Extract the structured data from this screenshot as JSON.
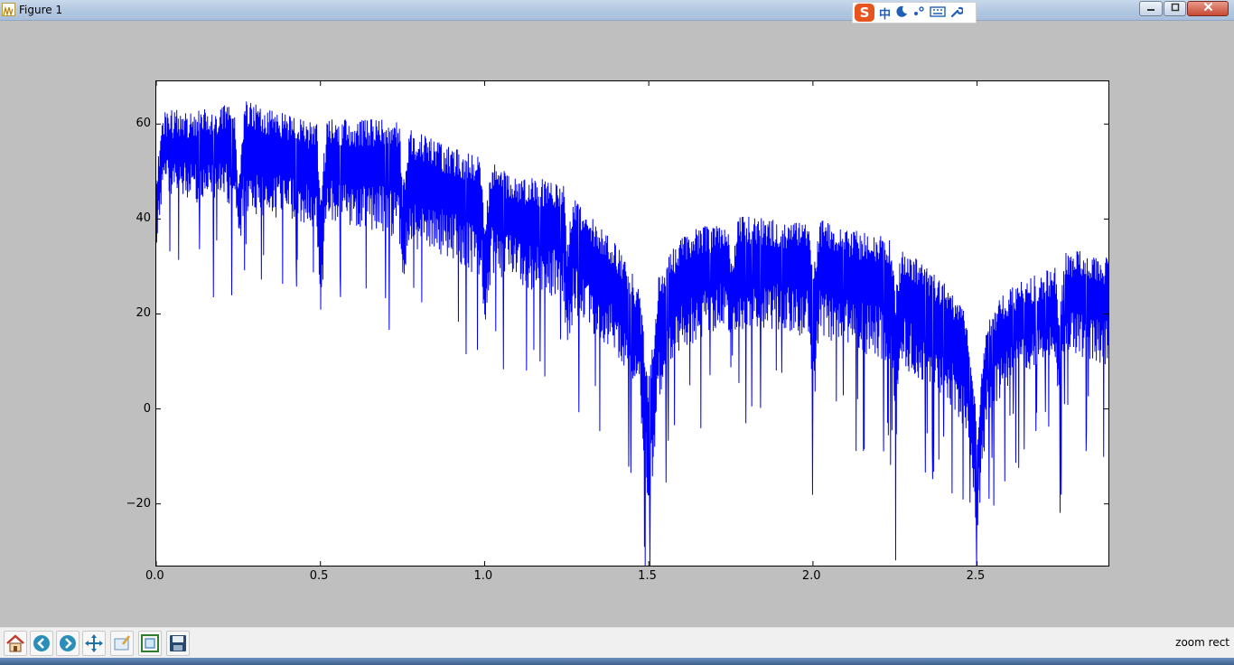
{
  "window": {
    "title": "Figure 1",
    "icon": "matplotlib-figure-icon",
    "controls": [
      "minimize-icon",
      "maximize-icon",
      "close-icon"
    ]
  },
  "ime": {
    "logo": "S",
    "mode": "中",
    "icons": [
      "sogou-logo-icon",
      "moon-icon",
      "punctuation-icon",
      "keyboard-icon",
      "wrench-icon"
    ]
  },
  "toolbar": {
    "buttons": [
      {
        "name": "home-button",
        "icon": "home-icon"
      },
      {
        "name": "back-button",
        "icon": "arrow-left-icon"
      },
      {
        "name": "forward-button",
        "icon": "arrow-right-icon"
      },
      {
        "name": "pan-button",
        "icon": "move-icon"
      },
      {
        "name": "zoom-button",
        "icon": "zoom-rect-icon"
      },
      {
        "name": "subplots-button",
        "icon": "subplots-icon"
      },
      {
        "name": "save-button",
        "icon": "save-icon"
      }
    ],
    "status": "zoom rect"
  },
  "colors": {
    "line": "#0000ff",
    "figure_bg": "#bfbfbf",
    "axes_bg": "#ffffff"
  },
  "chart_data": {
    "type": "line",
    "xlim": [
      0.0,
      2.9
    ],
    "ylim": [
      -33,
      69
    ],
    "xticks": [
      0.0,
      0.5,
      1.0,
      1.5,
      2.0,
      2.5
    ],
    "xtick_labels": [
      "0.0",
      "0.5",
      "1.0",
      "1.5",
      "2.0",
      "2.5"
    ],
    "yticks": [
      60,
      40,
      20,
      0,
      -20
    ],
    "ytick_labels": [
      "60",
      "40",
      "20",
      "0",
      "−20"
    ],
    "grid": false,
    "series": [
      {
        "color": "#0000ff",
        "envelope_x": [
          0.0,
          0.02,
          0.1,
          0.2,
          0.24,
          0.25,
          0.27,
          0.4,
          0.49,
          0.5,
          0.52,
          0.6,
          0.74,
          0.75,
          0.77,
          0.9,
          0.99,
          1.0,
          1.02,
          1.1,
          1.24,
          1.25,
          1.27,
          1.4,
          1.47,
          1.5,
          1.53,
          1.6,
          1.74,
          1.75,
          1.77,
          1.9,
          1.99,
          2.0,
          2.02,
          2.1,
          2.24,
          2.25,
          2.27,
          2.4,
          2.47,
          2.5,
          2.53,
          2.6,
          2.74,
          2.75,
          2.77,
          2.9
        ],
        "envelope_upper": [
          50,
          63,
          63,
          64,
          64,
          48,
          65,
          62,
          60,
          46,
          61,
          61,
          61,
          46,
          59,
          55,
          53,
          40,
          52,
          49,
          48,
          35,
          45,
          35,
          26,
          6,
          28,
          37,
          40,
          30,
          41,
          40,
          39,
          28,
          40,
          38,
          36,
          24,
          34,
          27,
          20,
          -3,
          20,
          26,
          30,
          20,
          34,
          32
        ],
        "envelope_lower": [
          30,
          40,
          38,
          37,
          36,
          28,
          35,
          33,
          31,
          12,
          33,
          32,
          29,
          15,
          27,
          25,
          20,
          2,
          22,
          20,
          15,
          2,
          12,
          5,
          -3,
          -33,
          -5,
          5,
          12,
          2,
          10,
          10,
          8,
          -12,
          8,
          6,
          2,
          -25,
          2,
          -5,
          -12,
          -33,
          -10,
          0,
          5,
          -10,
          5,
          2
        ]
      }
    ]
  }
}
